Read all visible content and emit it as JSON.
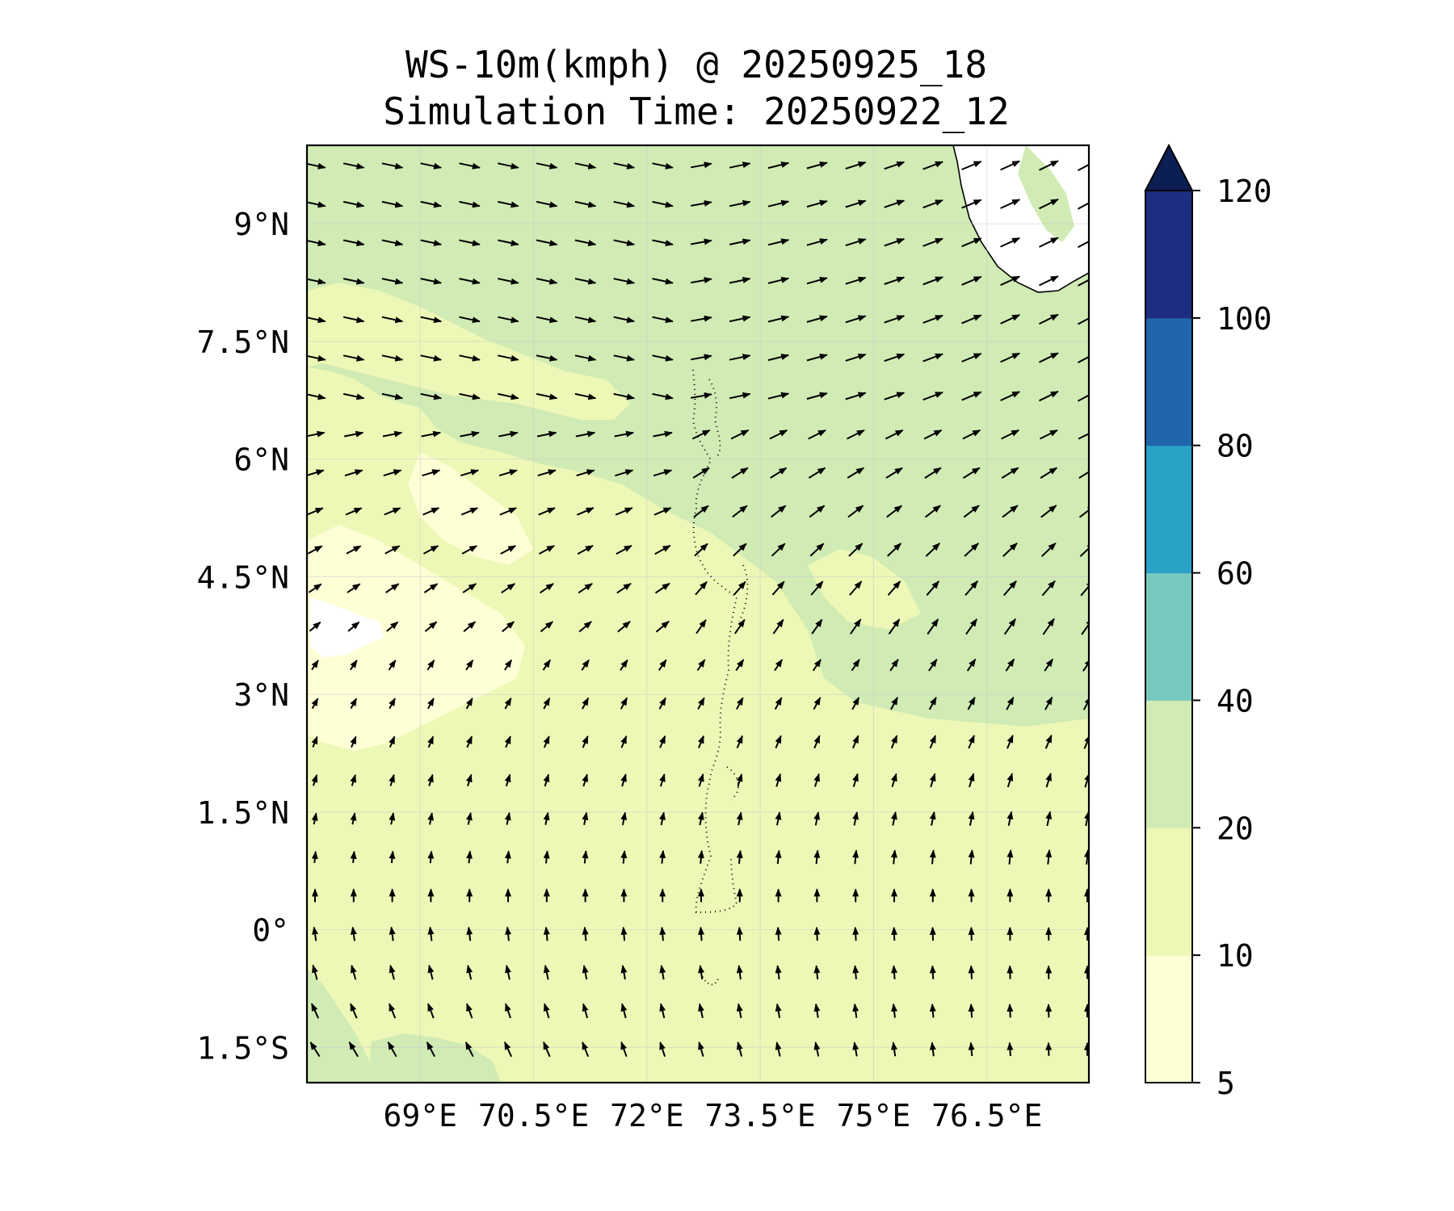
{
  "title": {
    "line1": "WS-10m(kmph) @ 20250925_18",
    "line2": "Simulation Time: 20250922_12"
  },
  "map": {
    "lon_range": [
      67.5,
      77.85
    ],
    "lat_range": [
      -1.95,
      10.0
    ],
    "x_ticks": [
      {
        "value": 69.0,
        "label": "69°E"
      },
      {
        "value": 70.5,
        "label": "70.5°E"
      },
      {
        "value": 72.0,
        "label": "72°E"
      },
      {
        "value": 73.5,
        "label": "73.5°E"
      },
      {
        "value": 75.0,
        "label": "75°E"
      },
      {
        "value": 76.5,
        "label": "76.5°E"
      }
    ],
    "y_ticks": [
      {
        "value": 9.0,
        "label": "9°N"
      },
      {
        "value": 7.5,
        "label": "7.5°N"
      },
      {
        "value": 6.0,
        "label": "6°N"
      },
      {
        "value": 4.5,
        "label": "4.5°N"
      },
      {
        "value": 3.0,
        "label": "3°N"
      },
      {
        "value": 1.5,
        "label": "1.5°N"
      },
      {
        "value": 0.0,
        "label": "0°"
      },
      {
        "value": -1.5,
        "label": "1.5°S"
      }
    ],
    "grid": true,
    "features": [
      "India southern tip coastline (top-right)",
      "Maldives atolls (dotted chain near 73.5°E)"
    ]
  },
  "colorbar": {
    "levels": [
      {
        "from": 5,
        "to": 10,
        "color": "#ffffd6"
      },
      {
        "from": 10,
        "to": 20,
        "color": "#edf8b6"
      },
      {
        "from": 20,
        "to": 40,
        "color": "#d0ebb4"
      },
      {
        "from": 40,
        "to": 60,
        "color": "#76c9bf"
      },
      {
        "from": 60,
        "to": 80,
        "color": "#2aa1c6"
      },
      {
        "from": 80,
        "to": 100,
        "color": "#2166ac"
      },
      {
        "from": 100,
        "to": 120,
        "color": "#1d2d80"
      }
    ],
    "extend_color": "#0c1f54",
    "tick_labels": [
      "5",
      "10",
      "20",
      "40",
      "60",
      "80",
      "100",
      "120"
    ],
    "extend": "max"
  },
  "colors": {
    "arrow": "#000000",
    "grid": "#cccccc",
    "land": "#ffffff"
  }
}
